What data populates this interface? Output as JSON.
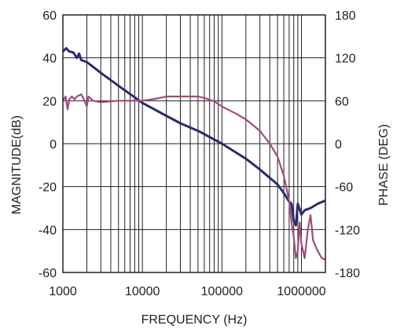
{
  "chart_data": {
    "type": "line",
    "xlabel": "FREQUENCY (Hz)",
    "ylabel_left": "MAGNITUDE(dB)",
    "ylabel_right": "PHASE (DEG)",
    "x_scale": "log",
    "xlim": [
      1000,
      2000000
    ],
    "ylim_left": [
      -60,
      60
    ],
    "ylim_right": [
      -180,
      180
    ],
    "grid": true,
    "x_ticks": [
      {
        "value": 1000,
        "label": "1000"
      },
      {
        "value": 10000,
        "label": "10000"
      },
      {
        "value": 100000,
        "label": "100000"
      },
      {
        "value": 1000000,
        "label": "1000000"
      }
    ],
    "y_ticks_left": [
      {
        "value": 60,
        "label": "60"
      },
      {
        "value": 40,
        "label": "40"
      },
      {
        "value": 20,
        "label": "20"
      },
      {
        "value": 0,
        "label": "0"
      },
      {
        "value": -20,
        "label": "-20"
      },
      {
        "value": -40,
        "label": "-40"
      },
      {
        "value": -60,
        "label": "-60"
      }
    ],
    "y_ticks_right": [
      {
        "value": 180,
        "label": "180"
      },
      {
        "value": 120,
        "label": "120"
      },
      {
        "value": 60,
        "label": "60"
      },
      {
        "value": 0,
        "label": "0"
      },
      {
        "value": -60,
        "label": "-60"
      },
      {
        "value": -120,
        "label": "-120"
      },
      {
        "value": -180,
        "label": "-180"
      }
    ],
    "series": [
      {
        "axis": "left",
        "color": "#2e2a6e",
        "points": [
          [
            1000,
            43
          ],
          [
            1100,
            44.5
          ],
          [
            1200,
            43
          ],
          [
            1350,
            42.5
          ],
          [
            1500,
            40
          ],
          [
            1600,
            42
          ],
          [
            1700,
            39
          ],
          [
            2000,
            38
          ],
          [
            3000,
            33
          ],
          [
            5000,
            27
          ],
          [
            10000,
            19
          ],
          [
            20000,
            13
          ],
          [
            30000,
            9.5
          ],
          [
            50000,
            6
          ],
          [
            100000,
            0
          ],
          [
            200000,
            -7
          ],
          [
            300000,
            -12
          ],
          [
            500000,
            -19
          ],
          [
            600000,
            -23
          ],
          [
            700000,
            -27
          ],
          [
            750000,
            -28
          ],
          [
            800000,
            -36
          ],
          [
            850000,
            -38
          ],
          [
            900000,
            -28
          ],
          [
            1000000,
            -33
          ],
          [
            1100000,
            -31
          ],
          [
            1300000,
            -30
          ],
          [
            1600000,
            -28
          ],
          [
            2000000,
            -26.5
          ]
        ]
      },
      {
        "axis": "right",
        "color": "#a04b7e",
        "points": [
          [
            1000,
            60
          ],
          [
            1080,
            66
          ],
          [
            1150,
            48
          ],
          [
            1200,
            62
          ],
          [
            1300,
            66
          ],
          [
            1400,
            62
          ],
          [
            1500,
            66
          ],
          [
            1700,
            69
          ],
          [
            1800,
            64
          ],
          [
            2000,
            52
          ],
          [
            2100,
            66
          ],
          [
            2400,
            60
          ],
          [
            3000,
            58
          ],
          [
            5000,
            60
          ],
          [
            10000,
            60
          ],
          [
            15000,
            63
          ],
          [
            20000,
            66
          ],
          [
            30000,
            66
          ],
          [
            50000,
            66
          ],
          [
            60000,
            64
          ],
          [
            80000,
            59
          ],
          [
            100000,
            52
          ],
          [
            150000,
            42
          ],
          [
            200000,
            34
          ],
          [
            300000,
            18
          ],
          [
            400000,
            0
          ],
          [
            500000,
            -18
          ],
          [
            600000,
            -45
          ],
          [
            700000,
            -80
          ],
          [
            750000,
            -110
          ],
          [
            800000,
            -130
          ],
          [
            850000,
            -160
          ],
          [
            900000,
            -150
          ],
          [
            950000,
            -110
          ],
          [
            1000000,
            -140
          ],
          [
            1100000,
            -160
          ],
          [
            1200000,
            -120
          ],
          [
            1300000,
            -100
          ],
          [
            1400000,
            -135
          ],
          [
            1600000,
            -150
          ],
          [
            1800000,
            -160
          ],
          [
            2000000,
            -162
          ]
        ]
      }
    ]
  }
}
